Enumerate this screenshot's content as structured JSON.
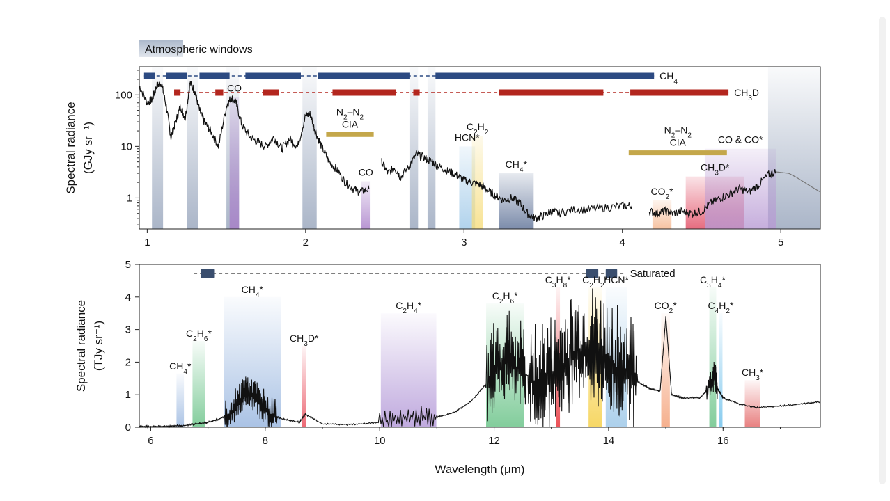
{
  "chart_data": [
    {
      "type": "line",
      "panel": "top",
      "title": "",
      "xlabel": "",
      "ylabel": "Spectral radiance",
      "yunit": "(GJy sr⁻¹)",
      "y_scale": "log",
      "xlim": [
        0.95,
        5.25
      ],
      "ylim": [
        0.25,
        350
      ],
      "x_ticks": [
        1,
        2,
        3,
        4,
        5
      ],
      "y_ticks": [
        1,
        10,
        100
      ],
      "legend": {
        "label": "Atmospheric windows",
        "color": "#a9b6c9",
        "placement": "top-left"
      },
      "atmospheric_windows": [
        [
          1.03,
          1.1
        ],
        [
          1.25,
          1.32
        ],
        [
          1.5,
          1.58
        ],
        [
          1.98,
          2.07
        ],
        [
          2.66,
          2.71
        ],
        [
          2.77,
          2.82
        ],
        [
          4.92,
          5.25
        ]
      ],
      "coverage_bars": [
        {
          "label": "CH₄",
          "color": "#2c4a82",
          "segments": [
            [
              0.98,
              1.05
            ],
            [
              1.12,
              1.25
            ],
            [
              1.33,
              1.52
            ],
            [
              1.62,
              1.97
            ],
            [
              2.08,
              2.66
            ],
            [
              2.82,
              4.2
            ]
          ]
        },
        {
          "label": "CH₃D",
          "color": "#b3261e",
          "segments": [
            [
              1.17,
              1.21
            ],
            [
              1.43,
              1.48
            ],
            [
              1.73,
              1.83
            ],
            [
              2.17,
              2.57
            ],
            [
              2.68,
              2.72
            ],
            [
              3.22,
              3.88
            ],
            [
              4.05,
              4.67
            ]
          ]
        }
      ],
      "features": [
        {
          "label": "CO",
          "x": [
            1.52,
            1.58
          ],
          "color": "#a77cc8",
          "ymax": 90
        },
        {
          "label": "CO",
          "x": [
            2.35,
            2.41
          ],
          "color": "#a77cc8",
          "ymax": 2.1
        },
        {
          "label": "HCN*",
          "x": [
            2.97,
            3.07
          ],
          "color": "#9ec8e8",
          "ymax": 10
        },
        {
          "label": "C₂H₂",
          "x": [
            3.05,
            3.12
          ],
          "color": "#f6dc7a",
          "ymax": 16
        },
        {
          "label": "CH₄*",
          "x": [
            3.22,
            3.44
          ],
          "color": "#5c7096",
          "ymax": 3
        },
        {
          "label": "CO₂*",
          "x": [
            4.19,
            4.31
          ],
          "color": "#f4b48a",
          "ymax": 0.9
        },
        {
          "label": "CH₃D*",
          "x": [
            4.4,
            4.77
          ],
          "color": "#e04860",
          "ymax": 2.6
        },
        {
          "label": "CO & CO*",
          "x": [
            4.52,
            4.97
          ],
          "color": "#b89ad4",
          "ymax": 9
        }
      ],
      "cia_bars": [
        {
          "label": "N₂–N₂\nCIA",
          "x": [
            2.13,
            2.43
          ],
          "y": 17,
          "color": "#c4a74a"
        },
        {
          "label": "N₂–N₂\nCIA",
          "x": [
            4.04,
            4.66
          ],
          "y": 7.5,
          "color": "#c4a74a"
        }
      ],
      "series": [
        {
          "name": "",
          "color": "#111111",
          "x": [
            0.95,
            1.0,
            1.03,
            1.06,
            1.09,
            1.12,
            1.15,
            1.18,
            1.21,
            1.24,
            1.27,
            1.3,
            1.33,
            1.36,
            1.4,
            1.45,
            1.5,
            1.53,
            1.56,
            1.6,
            1.65,
            1.7,
            1.75,
            1.8,
            1.85,
            1.9,
            1.95,
            2.0,
            2.03,
            2.06,
            2.1,
            2.15,
            2.2,
            2.25,
            2.3,
            2.35,
            2.4
          ],
          "y": [
            150,
            70,
            80,
            150,
            170,
            60,
            15,
            30,
            60,
            35,
            170,
            120,
            50,
            30,
            20,
            10,
            60,
            90,
            70,
            25,
            15,
            12,
            10,
            15,
            9,
            14,
            10,
            40,
            42,
            20,
            10,
            5,
            3.5,
            2,
            1.5,
            1.3,
            1.5
          ]
        },
        {
          "name": "",
          "color": "#111111",
          "x": [
            2.48,
            2.52,
            2.56,
            2.6,
            2.65,
            2.7,
            2.75,
            2.8,
            2.85,
            2.9,
            2.95,
            3.0,
            3.05,
            3.1,
            3.15,
            3.2,
            3.25,
            3.3,
            3.35,
            3.4,
            3.45,
            3.5,
            3.55,
            3.6,
            3.7,
            3.8,
            3.9,
            4.0,
            4.06
          ],
          "y": [
            5,
            3,
            4,
            2.5,
            4,
            7,
            6,
            5,
            4,
            3.3,
            2.8,
            2.2,
            2,
            1.8,
            1.4,
            1.1,
            0.9,
            1.0,
            0.8,
            0.5,
            0.4,
            0.45,
            0.55,
            0.5,
            0.6,
            0.6,
            0.65,
            0.7,
            0.7
          ]
        },
        {
          "name": "",
          "color": "#111111",
          "x": [
            4.17,
            4.22,
            4.27,
            4.32,
            4.38,
            4.44,
            4.5,
            4.56,
            4.62,
            4.68,
            4.74,
            4.8,
            4.86,
            4.92,
            4.97
          ],
          "y": [
            0.55,
            0.5,
            0.55,
            0.5,
            0.55,
            0.5,
            0.55,
            0.8,
            1.0,
            1.2,
            1.5,
            1.3,
            1.8,
            2.8,
            3.2
          ]
        },
        {
          "name": "",
          "color": "#777777",
          "x": [
            4.97,
            5.05,
            5.1,
            5.15,
            5.2,
            5.25
          ],
          "y": [
            3.2,
            3.0,
            2.5,
            2.0,
            1.6,
            1.3
          ]
        }
      ]
    },
    {
      "type": "line",
      "panel": "bottom",
      "title": "",
      "xlabel": "Wavelength (μm)",
      "ylabel": "Spectral radiance",
      "yunit": "(TJy sr⁻¹)",
      "xlim": [
        5.8,
        17.7
      ],
      "ylim": [
        0,
        5
      ],
      "x_ticks": [
        6,
        8,
        10,
        12,
        14,
        16
      ],
      "y_ticks": [
        0,
        1,
        2,
        3,
        4,
        5
      ],
      "saturated": {
        "label": "Saturated",
        "color": "#3a4e6e",
        "segments": [
          [
            6.88,
            7.12
          ],
          [
            13.6,
            13.82
          ],
          [
            13.95,
            14.15
          ]
        ],
        "line": [
          6.75,
          14.3
        ]
      },
      "features": [
        {
          "label": "CH₄*",
          "x": [
            6.45,
            6.58
          ],
          "color": "#9bb8e0",
          "ymax": 1.65
        },
        {
          "label": "C₂H₆*",
          "x": [
            6.73,
            6.95
          ],
          "color": "#6cc48a",
          "ymax": 2.65
        },
        {
          "label": "CH₄*",
          "x": [
            7.28,
            8.27
          ],
          "color": "#9bb8e0",
          "ymax": 4.0
        },
        {
          "label": "CH₃D*",
          "x": [
            8.64,
            8.72
          ],
          "color": "#e94e5c",
          "ymax": 2.5
        },
        {
          "label": "C₂H₄*",
          "x": [
            10.02,
            10.99
          ],
          "color": "#b49ad8",
          "ymax": 3.5
        },
        {
          "label": "C₂H₆*",
          "x": [
            11.86,
            12.52
          ],
          "color": "#6cc48a",
          "ymax": 3.8
        },
        {
          "label": "C₃H₈*",
          "x": [
            13.08,
            13.15
          ],
          "color": "#e8333a",
          "ymax": 4.3
        },
        {
          "label": "C₂H₂*",
          "x": [
            13.65,
            13.88
          ],
          "color": "#f5d04a",
          "ymax": 4.3
        },
        {
          "label": "HCN*",
          "x": [
            13.95,
            14.32
          ],
          "color": "#9ec8e8",
          "ymax": 4.3
        },
        {
          "label": "CO₂*",
          "x": [
            14.92,
            15.07
          ],
          "color": "#f4a27a",
          "ymax": 3.5
        },
        {
          "label": "C₃H₄*",
          "x": [
            15.76,
            15.88
          ],
          "color": "#6cc48a",
          "ymax": 4.3
        },
        {
          "label": "C₄H₂*",
          "x": [
            15.93,
            15.99
          ],
          "color": "#72c2ec",
          "ymax": 3.5
        },
        {
          "label": "CH₃*",
          "x": [
            16.38,
            16.65
          ],
          "color": "#e46a6a",
          "ymax": 1.45
        }
      ],
      "series": [
        {
          "name": "",
          "color": "#111111",
          "x": [
            5.8,
            6.0,
            6.3,
            6.5,
            6.55,
            6.8,
            7.0,
            7.2,
            7.4,
            7.55,
            7.65,
            7.75,
            7.9,
            8.1,
            8.3,
            8.6,
            8.7,
            9.0,
            9.5,
            10.0,
            10.5,
            11.0,
            11.3,
            11.6,
            11.9,
            12.1,
            12.3,
            12.5,
            12.7,
            12.9,
            13.1,
            13.3,
            13.5,
            13.7,
            13.9,
            14.1,
            14.3,
            14.5,
            14.7,
            14.9,
            15.0,
            15.1,
            15.3,
            15.6,
            15.8,
            15.85,
            15.9,
            16.0,
            16.3,
            16.6,
            17.0,
            17.4,
            17.7
          ],
          "y": [
            0.02,
            0.02,
            0.03,
            0.05,
            0.04,
            0.1,
            0.15,
            0.25,
            0.45,
            0.8,
            1.1,
            1.0,
            0.7,
            0.4,
            0.25,
            0.15,
            0.4,
            0.1,
            0.08,
            0.15,
            0.3,
            0.3,
            0.45,
            0.8,
            1.4,
            1.9,
            2.0,
            1.7,
            1.4,
            1.3,
            1.5,
            2.0,
            2.2,
            2.3,
            2.1,
            1.9,
            1.6,
            1.4,
            1.2,
            1.1,
            3.4,
            1.0,
            0.9,
            0.9,
            1.3,
            1.6,
            1.2,
            0.9,
            0.7,
            0.6,
            0.65,
            0.72,
            0.78
          ]
        }
      ]
    }
  ]
}
